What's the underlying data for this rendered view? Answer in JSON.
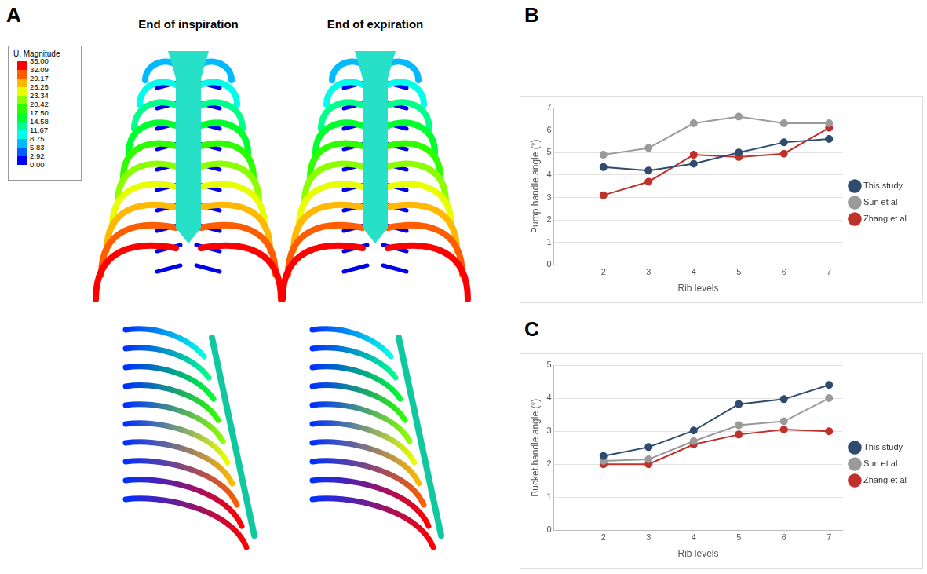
{
  "panel_a": {
    "panel": "A",
    "columns": [
      "End of inspiration",
      "End of expiration"
    ],
    "colorbar": {
      "title": "U, Magnitude",
      "lim": [
        0,
        35
      ],
      "ticks": [
        {
          "value": 35,
          "label": "35.00"
        },
        {
          "value": 32.09,
          "label": "32.09"
        },
        {
          "value": 29.17,
          "label": "29.17"
        },
        {
          "value": 26.25,
          "label": "26.25"
        },
        {
          "value": 23.34,
          "label": "23.34"
        },
        {
          "value": 20.42,
          "label": "20.42"
        },
        {
          "value": 17.5,
          "label": "17.50"
        },
        {
          "value": 14.58,
          "label": "14.58"
        },
        {
          "value": 11.67,
          "label": "11.67"
        },
        {
          "value": 8.75,
          "label": "8.75"
        },
        {
          "value": 5.83,
          "label": "5.83"
        },
        {
          "value": 2.92,
          "label": "2.92"
        },
        {
          "value": 0,
          "label": "0.00"
        }
      ]
    }
  },
  "chart_data": [
    {
      "panel": "B",
      "type": "line",
      "x_label": "Rib levels",
      "y_label": "Pump handle angle (°)",
      "x": [
        2,
        3,
        4,
        5,
        6,
        7
      ],
      "xlim": [
        0.9,
        7.3
      ],
      "xticks": [
        2,
        3,
        4,
        5,
        6,
        7
      ],
      "ylim": [
        0,
        7
      ],
      "yticks": [
        0,
        1,
        2,
        3,
        4,
        5,
        6,
        7
      ],
      "grid": "y",
      "legend": "right",
      "marker": "circle",
      "series": [
        {
          "name": "This study",
          "color": "#2f4b6e",
          "values": [
            4.35,
            4.2,
            4.5,
            5.0,
            5.45,
            5.6
          ]
        },
        {
          "name": "Sun et al",
          "color": "#9a9a9a",
          "values": [
            4.9,
            5.2,
            6.3,
            6.6,
            6.3,
            6.3
          ]
        },
        {
          "name": "Zhang et al",
          "color": "#c0312b",
          "values": [
            3.1,
            3.7,
            4.9,
            4.8,
            4.95,
            6.1
          ]
        }
      ]
    },
    {
      "panel": "C",
      "type": "line",
      "x_label": "Rib levels",
      "y_label": "Bucket handle angle (°)",
      "x": [
        2,
        3,
        4,
        5,
        6,
        7
      ],
      "xlim": [
        0.9,
        7.3
      ],
      "xticks": [
        2,
        3,
        4,
        5,
        6,
        7
      ],
      "ylim": [
        0,
        5
      ],
      "yticks": [
        0,
        1,
        2,
        3,
        4,
        5
      ],
      "grid": "y",
      "legend": "right",
      "marker": "circle",
      "series": [
        {
          "name": "This study",
          "color": "#2f4b6e",
          "values": [
            2.25,
            2.52,
            3.02,
            3.82,
            3.97,
            4.4
          ]
        },
        {
          "name": "Sun et al",
          "color": "#9a9a9a",
          "values": [
            2.1,
            2.15,
            2.7,
            3.18,
            3.3,
            4.0
          ]
        },
        {
          "name": "Zhang et al",
          "color": "#c0312b",
          "values": [
            2.0,
            2.0,
            2.6,
            2.9,
            3.05,
            3.0
          ]
        }
      ]
    }
  ]
}
